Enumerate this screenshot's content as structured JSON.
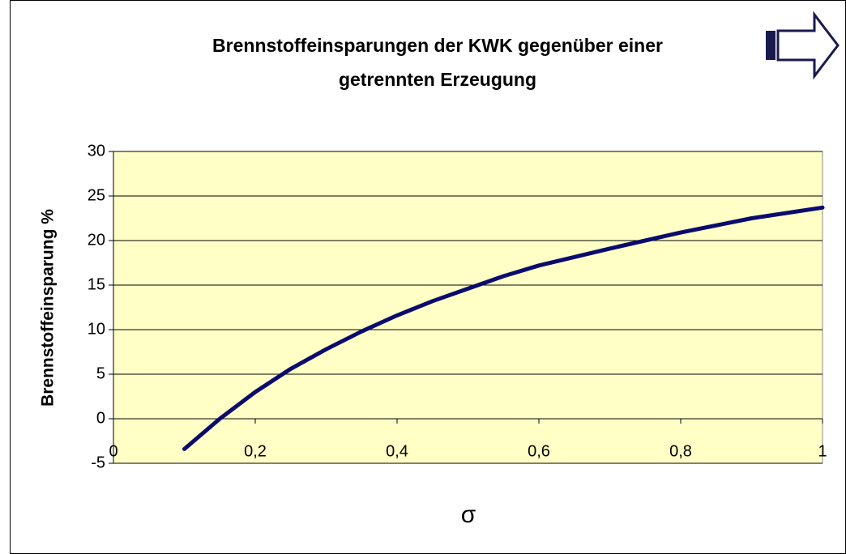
{
  "chart_data": {
    "type": "line",
    "title": [
      "Brennstoffeinsparungen der KWK gegenüber einer",
      "getrennten Erzeugung"
    ],
    "x_label": "σ",
    "y_label": "Brennstoffeinsparung %",
    "x": [
      0.1,
      0.15,
      0.175,
      0.2,
      0.25,
      0.3,
      0.35,
      0.4,
      0.45,
      0.5,
      0.55,
      0.6,
      0.7,
      0.8,
      0.9,
      1
    ],
    "series": [
      {
        "color": "#0b0b6e",
        "values": [
          -3.4,
          0,
          1.5,
          3,
          5.6,
          7.8,
          9.8,
          11.6,
          13.2,
          14.6,
          16,
          17.2,
          19.1,
          20.9,
          22.5,
          23.7
        ]
      }
    ],
    "xlim": [
      0,
      1
    ],
    "xticks": [
      0,
      {
        "value": 0.2,
        "label": "0,2"
      },
      {
        "value": 0.4,
        "label": "0,4"
      },
      {
        "value": 0.6,
        "label": "0,6"
      },
      {
        "value": 0.8,
        "label": "0,8"
      },
      1
    ],
    "ylim": [
      -5,
      30
    ],
    "yticks": [
      -5,
      0,
      5,
      10,
      15,
      20,
      25,
      30
    ],
    "grid": true
  }
}
